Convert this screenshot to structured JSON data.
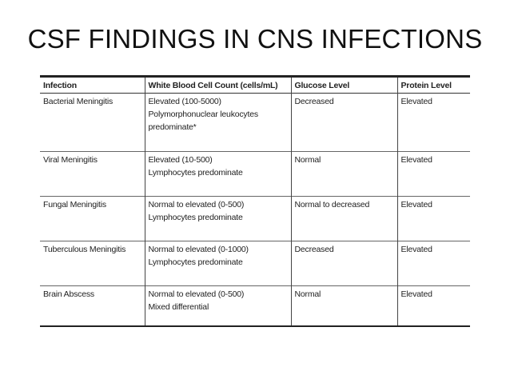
{
  "title": "CSF FINDINGS IN CNS INFECTIONS",
  "table": {
    "headers": [
      "Infection",
      "White Blood Cell Count (cells/mL)",
      "Glucose Level",
      "Protein Level"
    ],
    "rows": [
      {
        "infection": "Bacterial Meningitis",
        "wbc": [
          "Elevated (100-5000)",
          "Polymorphonuclear leukocytes",
          "predominate*"
        ],
        "glucose": "Decreased",
        "protein": "Elevated"
      },
      {
        "infection": "Viral Meningitis",
        "wbc": [
          "Elevated (10-500)",
          "Lymphocytes predominate"
        ],
        "glucose": "Normal",
        "protein": "Elevated"
      },
      {
        "infection": "Fungal Meningitis",
        "wbc": [
          "Normal to elevated (0-500)",
          "Lymphocytes predominate"
        ],
        "glucose": "Normal to decreased",
        "protein": "Elevated"
      },
      {
        "infection": "Tuberculous Meningitis",
        "wbc": [
          "Normal to elevated (0-1000)",
          "Lymphocytes predominate"
        ],
        "glucose": "Decreased",
        "protein": "Elevated"
      },
      {
        "infection": "Brain Abscess",
        "wbc": [
          "Normal to elevated (0-500)",
          "Mixed differential"
        ],
        "glucose": "Normal",
        "protein": "Elevated"
      }
    ]
  }
}
